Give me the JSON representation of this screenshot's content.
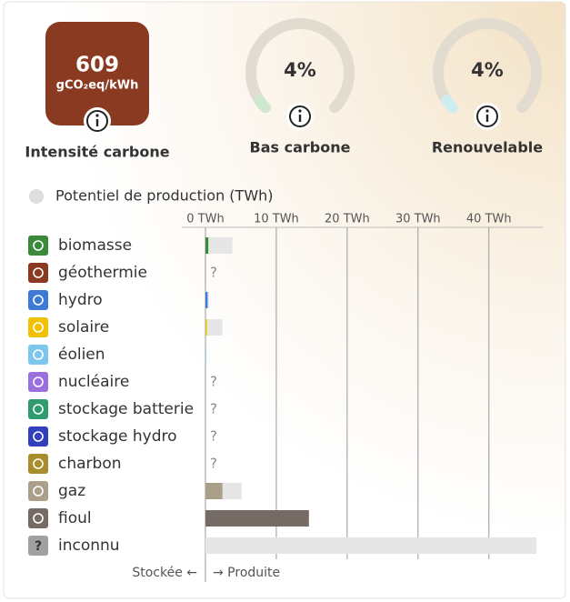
{
  "header": {
    "intensity": {
      "value": 609,
      "unit": "gCO₂eq/kWh",
      "label": "Intensité carbone",
      "color": "#8b3a22"
    },
    "gauges": [
      {
        "value": 4,
        "value_label": "4%",
        "label": "Bas carbone",
        "color": "#cfe8cf"
      },
      {
        "value": 4,
        "value_label": "4%",
        "label": "Renouvelable",
        "color": "#cdeeee"
      }
    ]
  },
  "chart_data": {
    "type": "bar",
    "orientation": "horizontal",
    "title": "Potentiel de production (TWh)",
    "categories": [
      "biomasse",
      "géothermie",
      "hydro",
      "solaire",
      "éolien",
      "nucléaire",
      "stockage batterie",
      "stockage hydro",
      "charbon",
      "gaz",
      "fioul",
      "inconnu"
    ],
    "colors": [
      "#3a8a3a",
      "#8b3a22",
      "#3d7ad6",
      "#f2c200",
      "#7cc7ee",
      "#9a6fe0",
      "#2f9b6f",
      "#3240c0",
      "#a88d2a",
      "#aaa08a",
      "#766a65",
      "#a0a0a0"
    ],
    "values": [
      0.4,
      null,
      0.3,
      0.2,
      0.1,
      null,
      null,
      null,
      null,
      2.4,
      14.6,
      0
    ],
    "capacity": [
      3.8,
      null,
      0.5,
      2.4,
      0.1,
      null,
      null,
      null,
      null,
      5.1,
      14.6,
      46.7
    ],
    "capacity_color": "#e6e6e6",
    "missing_label": "?",
    "xlim": [
      0,
      47.6
    ],
    "xticks": [
      {
        "value": 0,
        "label": "0 TWh"
      },
      {
        "value": 10,
        "label": "10 TWh"
      },
      {
        "value": 20,
        "label": "20 TWh"
      },
      {
        "value": 30,
        "label": "30 TWh"
      },
      {
        "value": 40,
        "label": "40 TWh"
      }
    ],
    "axis_labels": {
      "negative": "Stockée ←",
      "positive": "→ Produite"
    }
  }
}
